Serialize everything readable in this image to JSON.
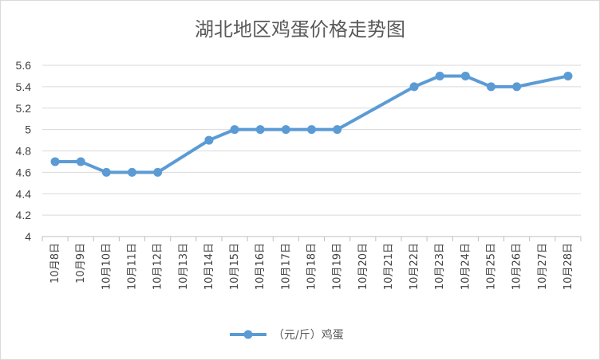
{
  "chart_data": {
    "type": "line",
    "title": "湖北地区鸡蛋价格走势图",
    "xlabel": "",
    "ylabel": "",
    "ylim": [
      4,
      5.6
    ],
    "yticks": [
      "4",
      "4.2",
      "4.4",
      "4.6",
      "4.8",
      "5",
      "5.2",
      "5.4",
      "5.6"
    ],
    "grid": true,
    "legend_position": "bottom",
    "categories": [
      "10月8日",
      "10月9日",
      "10月10日",
      "10月11日",
      "10月12日",
      "10月13日",
      "10月14日",
      "10月15日",
      "10月16日",
      "10月17日",
      "10月18日",
      "10月19日",
      "10月20日",
      "10月21日",
      "10月22日",
      "10月23日",
      "10月24日",
      "10月25日",
      "10月26日",
      "10月27日",
      "10月28日"
    ],
    "series": [
      {
        "name": "（元/斤）鸡蛋",
        "color": "#5b9bd5",
        "values": [
          4.7,
          4.7,
          4.6,
          4.6,
          4.6,
          null,
          4.9,
          5.0,
          5.0,
          5.0,
          5.0,
          5.0,
          null,
          null,
          5.4,
          5.5,
          5.5,
          5.4,
          5.4,
          null,
          5.5
        ]
      }
    ]
  }
}
